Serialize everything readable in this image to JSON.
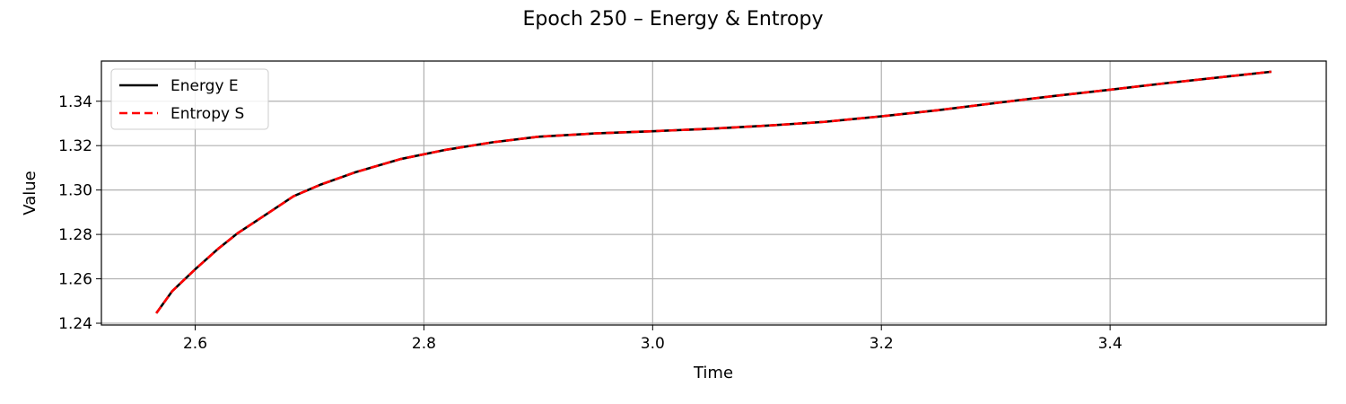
{
  "colors": {
    "energy": "#000000",
    "entropy": "#ff0000",
    "grid": "#b0b0b0"
  },
  "chart_data": {
    "type": "line",
    "title": "Epoch 250 – Energy & Entropy",
    "xlabel": "Time",
    "ylabel": "Value",
    "xlim": [
      2.518,
      3.589
    ],
    "ylim": [
      1.2392,
      1.3581
    ],
    "grid": true,
    "legend_position": "top-left",
    "x_ticks": [
      {
        "value": 2.6,
        "label": "2.6"
      },
      {
        "value": 2.8,
        "label": "2.8"
      },
      {
        "value": 3.0,
        "label": "3.0"
      },
      {
        "value": 3.2,
        "label": "3.2"
      },
      {
        "value": 3.4,
        "label": "3.4"
      }
    ],
    "y_ticks": [
      {
        "value": 1.24,
        "label": "1.24"
      },
      {
        "value": 1.26,
        "label": "1.26"
      },
      {
        "value": 1.28,
        "label": "1.28"
      },
      {
        "value": 1.3,
        "label": "1.30"
      },
      {
        "value": 1.32,
        "label": "1.32"
      },
      {
        "value": 1.34,
        "label": "1.34"
      }
    ],
    "series": [
      {
        "name": "Energy E",
        "style": "solid",
        "color": "#000000",
        "x": [
          2.566,
          2.58,
          2.6,
          2.62,
          2.637,
          2.66,
          2.686,
          2.71,
          2.74,
          2.78,
          2.82,
          2.86,
          2.9,
          2.95,
          3.0,
          3.05,
          3.1,
          3.15,
          3.2,
          3.25,
          3.3,
          3.35,
          3.4,
          3.45,
          3.5,
          3.541
        ],
        "y": [
          1.2445,
          1.2545,
          1.2643,
          1.2735,
          1.2805,
          1.2883,
          1.2972,
          1.3025,
          1.308,
          1.314,
          1.3182,
          1.3215,
          1.324,
          1.3255,
          1.3265,
          1.3276,
          1.329,
          1.3307,
          1.3332,
          1.336,
          1.3392,
          1.3423,
          1.3452,
          1.3482,
          1.351,
          1.3533
        ]
      },
      {
        "name": "Entropy S",
        "style": "dashed",
        "color": "#ff0000",
        "x": [
          2.566,
          2.58,
          2.6,
          2.62,
          2.637,
          2.66,
          2.686,
          2.71,
          2.74,
          2.78,
          2.82,
          2.86,
          2.9,
          2.95,
          3.0,
          3.05,
          3.1,
          3.15,
          3.2,
          3.25,
          3.3,
          3.35,
          3.4,
          3.45,
          3.5,
          3.541
        ],
        "y": [
          1.2445,
          1.2545,
          1.2643,
          1.2735,
          1.2805,
          1.2883,
          1.2972,
          1.3025,
          1.308,
          1.314,
          1.3182,
          1.3215,
          1.324,
          1.3255,
          1.3265,
          1.3276,
          1.329,
          1.3307,
          1.3332,
          1.336,
          1.3392,
          1.3423,
          1.3452,
          1.3482,
          1.351,
          1.3533
        ]
      }
    ]
  }
}
